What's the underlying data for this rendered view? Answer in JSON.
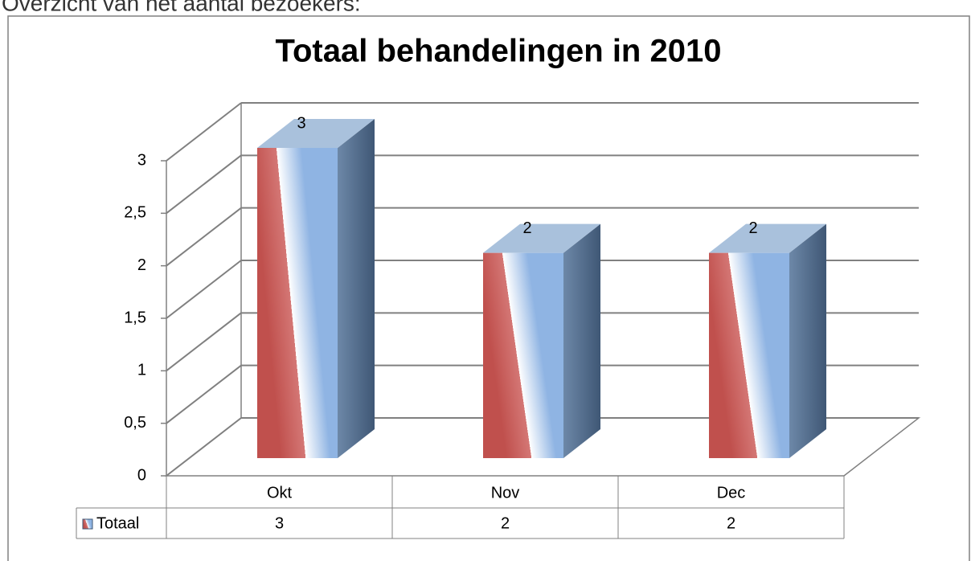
{
  "heading": "Overzicht van het aantal bezoekers:",
  "chart_data": {
    "type": "bar3d",
    "title": "Totaal behandelingen in 2010",
    "categories": [
      "Okt",
      "Nov",
      "Dec"
    ],
    "series": [
      {
        "name": "Totaal",
        "color": "#c0504d",
        "values": [
          3,
          2,
          2
        ]
      }
    ],
    "ylim": [
      0,
      3
    ],
    "yticks": [
      0,
      {
        "value": 0.5,
        "label": "0,5"
      },
      1,
      {
        "value": 1.5,
        "label": "1,5"
      },
      2,
      {
        "value": 2.5,
        "label": "2,5"
      },
      3
    ],
    "grid": true,
    "data_table": true
  }
}
